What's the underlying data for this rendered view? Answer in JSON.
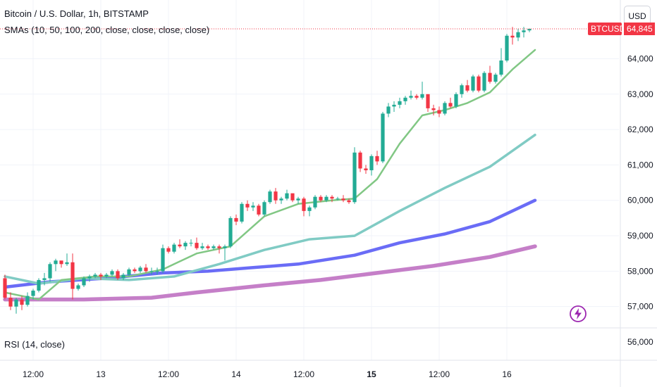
{
  "header": {
    "title": "Bitcoin / U.S. Dollar, 1h, BITSTAMP",
    "indicators": "SMAs (10, 50, 100, 200, close, close, close, close)",
    "currency": "USD",
    "symbol": "BTCUSD",
    "last_price": "64,845"
  },
  "rsi_pane": {
    "label": "RSI (14, close)"
  },
  "colors": {
    "up": "#22ab94",
    "down": "#f23645",
    "sma10": "#81c784",
    "sma50": "#80cbc4",
    "sma100": "#6a6cf6",
    "sma200": "#c57fc8",
    "flash": "#9c27b0"
  },
  "icons": {
    "flash": "lightning-bolt-icon"
  },
  "chart_data": {
    "type": "candlestick",
    "ylim": [
      56000,
      65500
    ],
    "y_ticks": [
      "56,000",
      "57,000",
      "58,000",
      "59,000",
      "60,000",
      "61,000",
      "62,000",
      "63,000",
      "64,000"
    ],
    "y_tick_values": [
      56000,
      57000,
      58000,
      59000,
      60000,
      61000,
      62000,
      63000,
      64000
    ],
    "x_ticks": [
      {
        "label": "12:00",
        "bar": 5
      },
      {
        "label": "13",
        "bar": 17
      },
      {
        "label": "12:00",
        "bar": 29
      },
      {
        "label": "14",
        "bar": 41
      },
      {
        "label": "12:00",
        "bar": 53
      },
      {
        "label": "15",
        "bar": 65
      },
      {
        "label": "12:00",
        "bar": 77
      },
      {
        "label": "16",
        "bar": 89
      }
    ],
    "bold_x_ticks": [
      "15"
    ],
    "candles": [
      [
        57800,
        57900,
        57200,
        57250
      ],
      [
        57250,
        57400,
        56900,
        57000
      ],
      [
        57000,
        57250,
        56800,
        57200
      ],
      [
        57200,
        57300,
        56900,
        57050
      ],
      [
        57050,
        57400,
        57000,
        57300
      ],
      [
        57300,
        57500,
        57200,
        57450
      ],
      [
        57450,
        57800,
        57400,
        57750
      ],
      [
        57750,
        57950,
        57600,
        57800
      ],
      [
        57800,
        58250,
        57700,
        58200
      ],
      [
        58200,
        58350,
        58000,
        58300
      ],
      [
        58300,
        58250,
        58100,
        58200
      ],
      [
        58200,
        58500,
        58150,
        58250
      ],
      [
        58250,
        58500,
        57200,
        57500
      ],
      [
        57500,
        57650,
        57450,
        57600
      ],
      [
        57600,
        57850,
        57550,
        57800
      ],
      [
        57800,
        57900,
        57700,
        57850
      ],
      [
        57850,
        57950,
        57800,
        57900
      ],
      [
        57900,
        57950,
        57750,
        57850
      ],
      [
        57850,
        57950,
        57800,
        57900
      ],
      [
        57900,
        58050,
        57850,
        58000
      ],
      [
        58000,
        58050,
        57750,
        57800
      ],
      [
        57800,
        57950,
        57750,
        57900
      ],
      [
        57900,
        58100,
        57850,
        58050
      ],
      [
        58050,
        58100,
        57950,
        58000
      ],
      [
        58000,
        58150,
        57950,
        58100
      ],
      [
        58100,
        58200,
        57950,
        58000
      ],
      [
        58000,
        58100,
        57900,
        58000
      ],
      [
        58000,
        58100,
        57900,
        58000
      ],
      [
        58000,
        58750,
        57950,
        58650
      ],
      [
        58650,
        58700,
        58500,
        58550
      ],
      [
        58550,
        58800,
        58500,
        58750
      ],
      [
        58750,
        58900,
        58650,
        58700
      ],
      [
        58700,
        58850,
        58600,
        58800
      ],
      [
        58800,
        58900,
        58700,
        58800
      ],
      [
        58800,
        58950,
        58600,
        58650
      ],
      [
        58650,
        58800,
        58600,
        58700
      ],
      [
        58700,
        58750,
        58600,
        58650
      ],
      [
        58650,
        58750,
        58600,
        58700
      ],
      [
        58700,
        58750,
        58500,
        58650
      ],
      [
        58650,
        58750,
        58300,
        58700
      ],
      [
        58700,
        59550,
        58650,
        59500
      ],
      [
        59500,
        59600,
        59300,
        59400
      ],
      [
        59400,
        59950,
        59350,
        59900
      ],
      [
        59900,
        60000,
        59700,
        59800
      ],
      [
        59800,
        59950,
        59700,
        59850
      ],
      [
        59850,
        59900,
        59550,
        59600
      ],
      [
        59600,
        60000,
        59550,
        59950
      ],
      [
        59950,
        60300,
        59900,
        60250
      ],
      [
        60250,
        60350,
        59900,
        60000
      ],
      [
        60000,
        60100,
        59900,
        60050
      ],
      [
        60050,
        60300,
        60000,
        60200
      ],
      [
        60200,
        60150,
        59950,
        60000
      ],
      [
        60000,
        60100,
        59900,
        60050
      ],
      [
        60050,
        60100,
        59550,
        59700
      ],
      [
        59700,
        59850,
        59550,
        59800
      ],
      [
        59800,
        60150,
        59750,
        60100
      ],
      [
        60100,
        60150,
        59950,
        60000
      ],
      [
        60000,
        60150,
        59950,
        60100
      ],
      [
        60100,
        60150,
        59950,
        60050
      ],
      [
        60050,
        60100,
        60000,
        60050
      ],
      [
        60050,
        60150,
        59950,
        60000
      ],
      [
        60000,
        60050,
        59900,
        59950
      ],
      [
        59950,
        61500,
        59900,
        61350
      ],
      [
        61350,
        61400,
        60800,
        60900
      ],
      [
        60900,
        61000,
        60750,
        60850
      ],
      [
        60850,
        61300,
        60700,
        61250
      ],
      [
        61250,
        61400,
        61000,
        61100
      ],
      [
        61100,
        62500,
        61050,
        62450
      ],
      [
        62450,
        62750,
        62350,
        62650
      ],
      [
        62650,
        62800,
        62500,
        62700
      ],
      [
        62700,
        62900,
        62600,
        62800
      ],
      [
        62800,
        62950,
        62700,
        62900
      ],
      [
        62900,
        63100,
        62850,
        62950
      ],
      [
        62950,
        63000,
        62850,
        62900
      ],
      [
        62900,
        63350,
        62850,
        63000
      ],
      [
        63000,
        62950,
        62500,
        62600
      ],
      [
        62600,
        62700,
        62400,
        62550
      ],
      [
        62550,
        62650,
        62350,
        62450
      ],
      [
        62450,
        62800,
        62400,
        62750
      ],
      [
        62750,
        62900,
        62600,
        62650
      ],
      [
        62650,
        63050,
        62600,
        63000
      ],
      [
        63000,
        63300,
        62900,
        63250
      ],
      [
        63250,
        63400,
        63050,
        63100
      ],
      [
        63100,
        63550,
        63050,
        63500
      ],
      [
        63500,
        63550,
        63050,
        63100
      ],
      [
        63100,
        63650,
        63050,
        63600
      ],
      [
        63600,
        63800,
        63300,
        63350
      ],
      [
        63350,
        63600,
        63300,
        63550
      ],
      [
        63550,
        64300,
        63500,
        63950
      ],
      [
        63950,
        64700,
        63900,
        64650
      ],
      [
        64650,
        64900,
        64400,
        64600
      ],
      [
        64600,
        64850,
        64500,
        64750
      ],
      [
        64750,
        64900,
        64600,
        64800
      ],
      [
        64800,
        64850,
        64750,
        64845
      ]
    ],
    "series": [
      {
        "key": "sma10",
        "width": 2.5,
        "points": [
          [
            0,
            57400
          ],
          [
            6,
            57200
          ],
          [
            10,
            57750
          ],
          [
            16,
            57850
          ],
          [
            22,
            57850
          ],
          [
            28,
            58050
          ],
          [
            34,
            58500
          ],
          [
            40,
            58700
          ],
          [
            46,
            59550
          ],
          [
            52,
            59900
          ],
          [
            58,
            60000
          ],
          [
            62,
            60050
          ],
          [
            66,
            60600
          ],
          [
            70,
            61600
          ],
          [
            74,
            62400
          ],
          [
            78,
            62550
          ],
          [
            82,
            62750
          ],
          [
            86,
            63050
          ],
          [
            90,
            63700
          ],
          [
            94,
            64250
          ]
        ]
      },
      {
        "key": "sma50",
        "width": 3.5,
        "points": [
          [
            0,
            57850
          ],
          [
            6,
            57650
          ],
          [
            14,
            57800
          ],
          [
            22,
            57750
          ],
          [
            30,
            57850
          ],
          [
            38,
            58200
          ],
          [
            46,
            58600
          ],
          [
            54,
            58900
          ],
          [
            62,
            59000
          ],
          [
            70,
            59700
          ],
          [
            78,
            60350
          ],
          [
            86,
            60950
          ],
          [
            94,
            61850
          ]
        ]
      },
      {
        "key": "sma100",
        "width": 4.5,
        "points": [
          [
            0,
            57550
          ],
          [
            8,
            57700
          ],
          [
            18,
            57800
          ],
          [
            28,
            57950
          ],
          [
            36,
            58000
          ],
          [
            44,
            58100
          ],
          [
            52,
            58200
          ],
          [
            62,
            58450
          ],
          [
            70,
            58800
          ],
          [
            78,
            59050
          ],
          [
            86,
            59400
          ],
          [
            94,
            60000
          ]
        ]
      },
      {
        "key": "sma200",
        "width": 5.5,
        "points": [
          [
            0,
            57200
          ],
          [
            14,
            57200
          ],
          [
            26,
            57250
          ],
          [
            34,
            57400
          ],
          [
            46,
            57600
          ],
          [
            56,
            57750
          ],
          [
            66,
            57950
          ],
          [
            76,
            58150
          ],
          [
            86,
            58400
          ],
          [
            94,
            58700
          ]
        ]
      }
    ]
  }
}
